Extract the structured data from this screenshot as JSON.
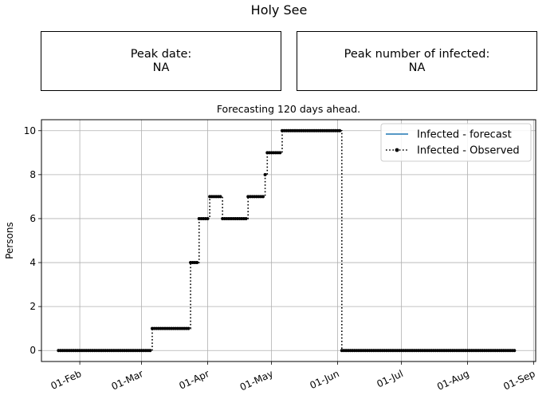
{
  "suptitle": "Holy See",
  "peak_date": {
    "label": "Peak date:",
    "value": "NA"
  },
  "peak_infected": {
    "label": "Peak number of infected:",
    "value": "NA"
  },
  "chart_data": {
    "type": "line",
    "title": "Forecasting 120 days ahead.",
    "xlabel": "",
    "ylabel": "Persons",
    "x_type": "date",
    "xlim": [
      "2020-01-14",
      "2020-09-02"
    ],
    "ylim": [
      -0.5,
      10.5
    ],
    "x_ticks": [
      "2020-02-01",
      "2020-03-01",
      "2020-04-01",
      "2020-05-01",
      "2020-06-01",
      "2020-07-01",
      "2020-08-01",
      "2020-09-01"
    ],
    "x_tick_labels": [
      "01-Feb",
      "01-Mar",
      "01-Apr",
      "01-May",
      "01-Jun",
      "01-Jul",
      "01-Aug",
      "01-Sep"
    ],
    "y_ticks": [
      0,
      2,
      4,
      6,
      8,
      10
    ],
    "grid": true,
    "legend_position": "top-right",
    "series": [
      {
        "name": "Infected - forecast",
        "color": "#1f77b4",
        "style": "solid",
        "points": []
      },
      {
        "name": "Infected - Observed",
        "color": "#000000",
        "style": "dotted-with-markers",
        "segments": [
          {
            "start": "2020-01-22",
            "end": "2020-03-05",
            "value": 0
          },
          {
            "start": "2020-03-06",
            "end": "2020-03-23",
            "value": 1
          },
          {
            "start": "2020-03-24",
            "end": "2020-03-27",
            "value": 4
          },
          {
            "start": "2020-03-28",
            "end": "2020-04-01",
            "value": 6
          },
          {
            "start": "2020-04-02",
            "end": "2020-04-07",
            "value": 7
          },
          {
            "start": "2020-04-08",
            "end": "2020-04-19",
            "value": 6
          },
          {
            "start": "2020-04-20",
            "end": "2020-04-27",
            "value": 7
          },
          {
            "start": "2020-04-28",
            "end": "2020-04-28",
            "value": 8
          },
          {
            "start": "2020-04-29",
            "end": "2020-05-05",
            "value": 9
          },
          {
            "start": "2020-05-06",
            "end": "2020-06-02",
            "value": 10
          },
          {
            "start": "2020-06-03",
            "end": "2020-08-23",
            "value": 0
          }
        ]
      }
    ]
  }
}
